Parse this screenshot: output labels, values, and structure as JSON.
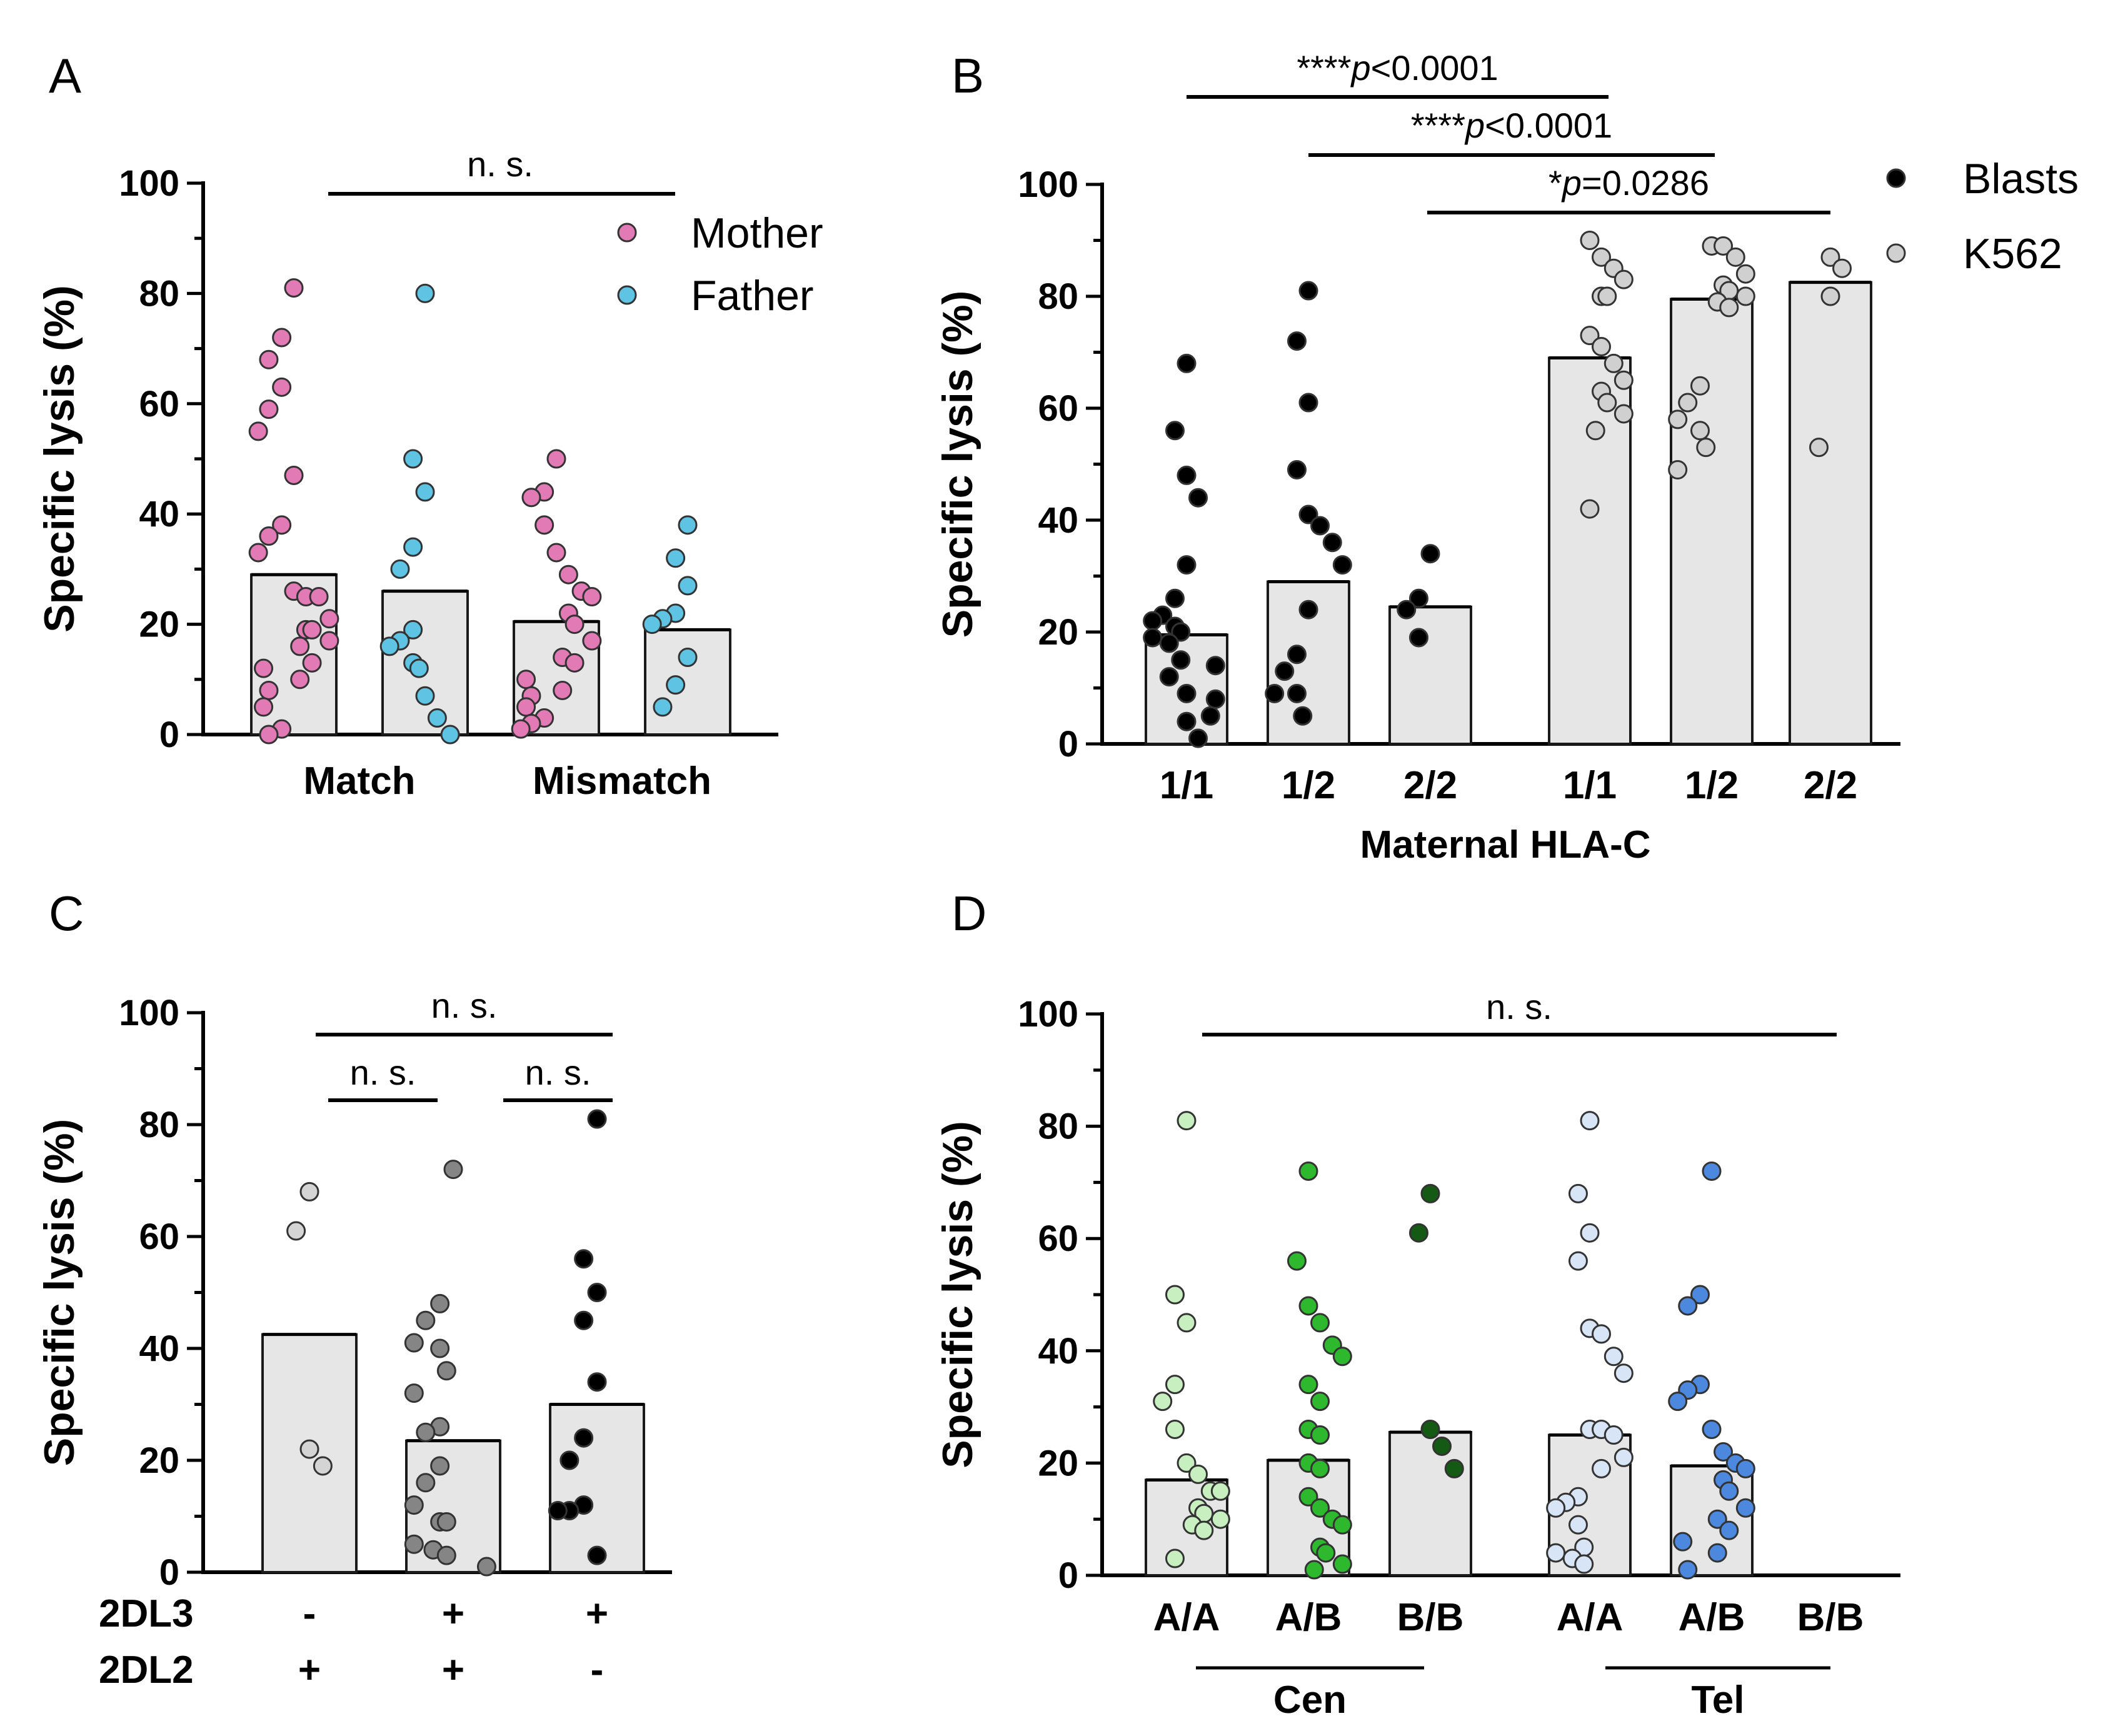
{
  "colors": {
    "pink": "#e27ab6",
    "cyan": "#5fc4e3",
    "black": "#000000",
    "k562": "#d0d0d0",
    "gray_light": "#d4d4d4",
    "gray_mid": "#858585",
    "green_light": "#c8efbf",
    "green_mid": "#2db82d",
    "green_dark": "#145a14",
    "blue_light": "#d8e5f7",
    "blue_mid": "#4b88de",
    "bar_fill": "#e6e6e6"
  },
  "chart_data": [
    {
      "panel": "A",
      "type": "bar",
      "ylabel": "Specific lysis (%)",
      "ylim": [
        0,
        100
      ],
      "yticks": [
        "0",
        "20",
        "40",
        "60",
        "80",
        "100"
      ],
      "groups": [
        "Match",
        "Mismatch"
      ],
      "legend": [
        {
          "label": "Mother",
          "color": "pink"
        },
        {
          "label": "Father",
          "color": "cyan"
        }
      ],
      "series": [
        {
          "name": "Mother",
          "group": "Match",
          "bar": 29,
          "color": "pink",
          "points": [
            81,
            72,
            68,
            63,
            59,
            55,
            47,
            38,
            36,
            33,
            26,
            25,
            25,
            21,
            19,
            19,
            17,
            16,
            13,
            12,
            10,
            8,
            5,
            1,
            0
          ]
        },
        {
          "name": "Father",
          "group": "Match",
          "bar": 26,
          "color": "cyan",
          "points": [
            80,
            50,
            44,
            34,
            30,
            19,
            17,
            16,
            13,
            12,
            7,
            3,
            0
          ]
        },
        {
          "name": "Mother",
          "group": "Mismatch",
          "bar": 20.5,
          "color": "pink",
          "points": [
            50,
            44,
            43,
            38,
            33,
            29,
            26,
            25,
            22,
            20,
            17,
            14,
            13,
            10,
            8,
            7,
            5,
            3,
            2,
            1
          ]
        },
        {
          "name": "Father",
          "group": "Mismatch",
          "bar": 19,
          "color": "cyan",
          "points": [
            38,
            32,
            27,
            22,
            21,
            20,
            14,
            9,
            5
          ]
        }
      ],
      "annotations": [
        {
          "text": "n. s.",
          "from": "Match",
          "to": "Mismatch"
        }
      ]
    },
    {
      "panel": "B",
      "type": "bar",
      "ylabel": "Specific lysis (%)",
      "xlabel": "Maternal HLA-C",
      "ylim": [
        0,
        100
      ],
      "yticks": [
        "0",
        "20",
        "40",
        "60",
        "80",
        "100"
      ],
      "categories": [
        "1/1",
        "1/2",
        "2/2",
        "1/1",
        "1/2",
        "2/2"
      ],
      "legend": [
        {
          "label": "Blasts",
          "color": "black"
        },
        {
          "label": "K562",
          "color": "k562"
        }
      ],
      "series": [
        {
          "name": "Blasts 1/1",
          "bar": 19.5,
          "color": "black",
          "points": [
            68,
            56,
            48,
            44,
            32,
            26,
            23,
            22,
            21,
            20,
            19,
            18,
            15,
            14,
            12,
            9,
            8,
            5,
            4,
            1
          ]
        },
        {
          "name": "Blasts 1/2",
          "bar": 29,
          "color": "black",
          "points": [
            81,
            72,
            61,
            49,
            41,
            39,
            36,
            32,
            24,
            16,
            13,
            9,
            9,
            5
          ]
        },
        {
          "name": "Blasts 2/2",
          "bar": 24.5,
          "color": "black",
          "points": [
            34,
            26,
            24,
            19
          ]
        },
        {
          "name": "K562 1/1",
          "bar": 69,
          "color": "k562",
          "points": [
            90,
            87,
            85,
            83,
            80,
            80,
            73,
            71,
            68,
            65,
            63,
            61,
            59,
            56,
            42
          ]
        },
        {
          "name": "K562 1/2",
          "bar": 79.5,
          "color": "k562",
          "points": [
            89,
            89,
            87,
            84,
            82,
            81,
            80,
            79,
            78,
            64,
            61,
            58,
            56,
            53,
            49
          ]
        },
        {
          "name": "K562 2/2",
          "bar": 82.5,
          "color": "k562",
          "points": [
            87,
            85,
            80,
            53
          ]
        }
      ],
      "annotations": [
        {
          "text": "****p<0.0001",
          "prefix": "****",
          "p": "p",
          "rest": "<0.0001",
          "from": 0,
          "to": 3
        },
        {
          "text": "****p<0.0001",
          "prefix": "****",
          "p": "p",
          "rest": "<0.0001",
          "from": 1,
          "to": 4
        },
        {
          "text": "*p=0.0286",
          "prefix": "*",
          "p": "p",
          "rest": "=0.0286",
          "from": 2,
          "to": 5
        }
      ]
    },
    {
      "panel": "C",
      "type": "bar",
      "ylabel": "Specific lysis (%)",
      "ylim": [
        0,
        100
      ],
      "yticks": [
        "0",
        "20",
        "40",
        "60",
        "80",
        "100"
      ],
      "row_labels": [
        "2DL3",
        "2DL2"
      ],
      "rows": [
        [
          "-",
          "+",
          "+"
        ],
        [
          "+",
          "+",
          "-"
        ]
      ],
      "series": [
        {
          "name": "2DL3- 2DL2+",
          "bar": 42.5,
          "color": "gray_light",
          "points": [
            68,
            61,
            22,
            19
          ]
        },
        {
          "name": "2DL3+ 2DL2+",
          "bar": 23.5,
          "color": "gray_mid",
          "points": [
            72,
            48,
            45,
            41,
            40,
            36,
            32,
            26,
            25,
            19,
            16,
            12,
            9,
            9,
            5,
            4,
            3,
            1
          ]
        },
        {
          "name": "2DL3+ 2DL2-",
          "bar": 30,
          "color": "black",
          "points": [
            81,
            56,
            50,
            45,
            34,
            24,
            20,
            12,
            11,
            11,
            3
          ]
        }
      ],
      "annotations": [
        {
          "text": "n. s.",
          "from": 0,
          "to": 2
        },
        {
          "text": "n. s.",
          "from": 0,
          "to": 1
        },
        {
          "text": "n. s.",
          "from": 1,
          "to": 2
        }
      ]
    },
    {
      "panel": "D",
      "type": "bar",
      "ylabel": "Specific lysis (%)",
      "ylim": [
        0,
        100
      ],
      "yticks": [
        "0",
        "20",
        "40",
        "60",
        "80",
        "100"
      ],
      "categories": [
        "A/A",
        "A/B",
        "B/B",
        "A/A",
        "A/B",
        "B/B"
      ],
      "group_labels": [
        {
          "label": "Cen",
          "from": 0,
          "to": 2
        },
        {
          "label": "Tel",
          "from": 3,
          "to": 5
        }
      ],
      "series": [
        {
          "name": "Cen A/A",
          "bar": 17,
          "color": "green_light",
          "points": [
            81,
            50,
            45,
            34,
            31,
            26,
            20,
            18,
            15,
            15,
            12,
            11,
            10,
            9,
            8,
            3
          ]
        },
        {
          "name": "Cen A/B",
          "bar": 20.5,
          "color": "green_mid",
          "points": [
            72,
            56,
            48,
            45,
            41,
            39,
            34,
            31,
            26,
            25,
            20,
            19,
            14,
            12,
            10,
            9,
            5,
            4,
            2,
            1
          ]
        },
        {
          "name": "Cen B/B",
          "bar": 25.5,
          "color": "green_dark",
          "points": [
            68,
            61,
            26,
            23,
            19
          ]
        },
        {
          "name": "Tel A/A",
          "bar": 25,
          "color": "blue_light",
          "points": [
            81,
            68,
            61,
            56,
            44,
            43,
            39,
            36,
            26,
            26,
            25,
            21,
            19,
            14,
            13,
            12,
            9,
            5,
            4,
            3,
            2
          ]
        },
        {
          "name": "Tel A/B",
          "bar": 19.5,
          "color": "blue_mid",
          "points": [
            72,
            50,
            48,
            34,
            33,
            31,
            26,
            22,
            20,
            19,
            17,
            15,
            12,
            10,
            8,
            6,
            4,
            1
          ]
        },
        {
          "name": "Tel B/B",
          "bar": null,
          "color": "blue_mid",
          "points": []
        }
      ],
      "annotations": [
        {
          "text": "n. s.",
          "from": 0,
          "to": 5
        }
      ]
    }
  ]
}
